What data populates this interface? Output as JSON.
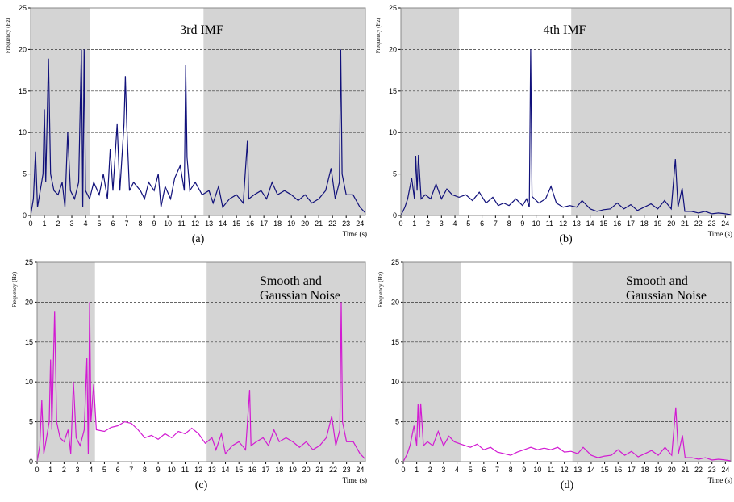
{
  "chart_data": [
    {
      "type": "line",
      "annotation": [
        "3rd IMF"
      ],
      "caption": "(a)",
      "x_label": "Time (s)",
      "y_label": "Frequency (Hz)",
      "xlim": [
        0,
        24.4
      ],
      "ylim": [
        0,
        25
      ],
      "xticks": [
        0,
        1,
        2,
        3,
        4,
        5,
        6,
        7,
        8,
        9,
        10,
        11,
        12,
        13,
        14,
        15,
        16,
        17,
        18,
        19,
        20,
        21,
        22,
        23,
        24
      ],
      "yticks": [
        0,
        5,
        10,
        15,
        20,
        25
      ],
      "grid": true,
      "shaded": [
        [
          0,
          4.3
        ],
        [
          12.6,
          24.4
        ]
      ],
      "x": [
        0,
        0.2,
        0.35,
        0.5,
        0.7,
        0.9,
        1,
        1.1,
        1.3,
        1.45,
        1.7,
        2,
        2.3,
        2.5,
        2.7,
        2.9,
        3.2,
        3.5,
        3.7,
        3.8,
        3.9,
        4,
        4.3,
        4.6,
        5,
        5.3,
        5.6,
        5.8,
        6,
        6.3,
        6.5,
        6.8,
        6.9,
        7,
        7.2,
        7.5,
        8,
        8.3,
        8.6,
        9,
        9.3,
        9.5,
        9.8,
        10.2,
        10.5,
        10.9,
        11.2,
        11.3,
        11.4,
        11.6,
        12,
        12.5,
        13,
        13.3,
        13.7,
        14,
        14.5,
        15,
        15.5,
        15.8,
        15.9,
        16.3,
        16.8,
        17.2,
        17.6,
        18,
        18.5,
        19,
        19.5,
        20,
        20.5,
        21,
        21.5,
        21.9,
        22.2,
        22.5,
        22.6,
        22.7,
        23,
        23.5,
        24,
        24.4
      ],
      "series": [
        {
          "color": "#10107a",
          "values": [
            0,
            2,
            7.7,
            1,
            3,
            5,
            12.8,
            4,
            18.9,
            5,
            3,
            2.5,
            4,
            1,
            10,
            3,
            2,
            4,
            20,
            1,
            20,
            3,
            2,
            4,
            2.5,
            5,
            2,
            8,
            3,
            11,
            3,
            11,
            16.8,
            11,
            3,
            4,
            3,
            2,
            4,
            3,
            5,
            1,
            3.5,
            2,
            4.5,
            6,
            3,
            18.1,
            7,
            3,
            4,
            2.5,
            3,
            1.5,
            3.5,
            1,
            2,
            2.5,
            1.5,
            9,
            2,
            2.5,
            3,
            2,
            4,
            2.5,
            3,
            2.5,
            1.8,
            2.5,
            1.5,
            2,
            3,
            5.7,
            2,
            4,
            20,
            5,
            2.5,
            2.5,
            1,
            0.3
          ]
        }
      ]
    },
    {
      "type": "line",
      "annotation": [
        "4th IMF"
      ],
      "caption": "(b)",
      "x_label": "Time (s)",
      "y_label": "Frequency (Hz)",
      "xlim": [
        0,
        24.4
      ],
      "ylim": [
        0,
        25
      ],
      "xticks": [
        0,
        1,
        2,
        3,
        4,
        5,
        6,
        7,
        8,
        9,
        10,
        11,
        12,
        13,
        14,
        15,
        16,
        17,
        18,
        19,
        20,
        21,
        22,
        23,
        24
      ],
      "yticks": [
        0,
        5,
        10,
        15,
        20,
        25
      ],
      "grid": true,
      "shaded": [
        [
          0,
          4.3
        ],
        [
          12.6,
          24.4
        ]
      ],
      "x": [
        0,
        0.3,
        0.5,
        0.8,
        1,
        1.1,
        1.2,
        1.3,
        1.5,
        1.8,
        2.2,
        2.6,
        3,
        3.4,
        3.8,
        4.3,
        4.8,
        5.3,
        5.8,
        6.3,
        6.8,
        7.2,
        7.6,
        8,
        8.5,
        9,
        9.3,
        9.5,
        9.6,
        9.7,
        10.2,
        10.7,
        11.1,
        11.5,
        12,
        12.5,
        13,
        13.4,
        14,
        14.5,
        15,
        15.5,
        16,
        16.5,
        17,
        17.5,
        18,
        18.5,
        19,
        19.5,
        20,
        20.3,
        20.5,
        20.8,
        21,
        21.5,
        22,
        22.5,
        23,
        23.5,
        24,
        24.4
      ],
      "series": [
        {
          "color": "#10107a",
          "values": [
            0,
            1,
            2,
            4.5,
            2,
            7.2,
            3,
            7.3,
            2,
            2.5,
            2,
            3.8,
            2,
            3.2,
            2.5,
            2.2,
            2.5,
            1.8,
            2.8,
            1.5,
            2.2,
            1.2,
            1.5,
            1.2,
            2,
            1.2,
            2,
            1,
            20,
            2.3,
            1.5,
            2,
            3.5,
            1.5,
            1,
            1.2,
            1,
            1.8,
            0.8,
            0.5,
            0.7,
            0.8,
            1.5,
            0.8,
            1.3,
            0.6,
            1,
            1.4,
            0.8,
            1.8,
            0.8,
            6.8,
            1,
            3.3,
            0.5,
            0.5,
            0.3,
            0.5,
            0.2,
            0.3,
            0.2,
            0.1
          ]
        }
      ]
    },
    {
      "type": "line",
      "annotation": [
        "Smooth and",
        "Gaussian Noise"
      ],
      "caption": "(c)",
      "x_label": "Time (s)",
      "y_label": "Frequency (Hz)",
      "xlim": [
        0,
        24.4
      ],
      "ylim": [
        0,
        25
      ],
      "xticks": [
        0,
        1,
        2,
        3,
        4,
        5,
        6,
        7,
        8,
        9,
        10,
        11,
        12,
        13,
        14,
        15,
        16,
        17,
        18,
        19,
        20,
        21,
        22,
        23,
        24
      ],
      "yticks": [
        0,
        5,
        10,
        15,
        20,
        25
      ],
      "grid": true,
      "shaded": [
        [
          0,
          4.3
        ],
        [
          12.6,
          24.4
        ]
      ],
      "x": [
        0,
        0.2,
        0.35,
        0.5,
        0.7,
        0.9,
        1,
        1.1,
        1.3,
        1.45,
        1.7,
        2,
        2.3,
        2.5,
        2.7,
        2.9,
        3.2,
        3.5,
        3.7,
        3.8,
        3.9,
        4,
        4.2,
        4.4,
        5,
        5.5,
        6,
        6.5,
        7,
        7.5,
        8,
        8.5,
        9,
        9.5,
        10,
        10.5,
        11,
        11.5,
        12,
        12.5,
        13,
        13.3,
        13.7,
        14,
        14.5,
        15,
        15.5,
        15.8,
        15.9,
        16.3,
        16.8,
        17.2,
        17.6,
        18,
        18.5,
        19,
        19.5,
        20,
        20.5,
        21,
        21.5,
        21.9,
        22.2,
        22.5,
        22.6,
        22.7,
        23,
        23.5,
        24,
        24.4
      ],
      "series": [
        {
          "color": "#d21ad2",
          "values": [
            0,
            2,
            7.7,
            1,
            3,
            5,
            12.8,
            4,
            18.9,
            5,
            3,
            2.5,
            4,
            1,
            10,
            3,
            2,
            4,
            13,
            1,
            20,
            5,
            9.7,
            4,
            3.8,
            4.3,
            4.5,
            5,
            4.8,
            4,
            3,
            3.3,
            2.8,
            3.5,
            3,
            3.8,
            3.5,
            4.2,
            3.5,
            2.3,
            3,
            1.5,
            3.5,
            1,
            2,
            2.5,
            1.5,
            9,
            2,
            2.5,
            3,
            2,
            4,
            2.5,
            3,
            2.5,
            1.8,
            2.5,
            1.5,
            2,
            3,
            5.7,
            2,
            4,
            20,
            5,
            2.5,
            2.5,
            1,
            0.3
          ]
        }
      ]
    },
    {
      "type": "line",
      "annotation": [
        "Smooth and",
        "Gaussian Noise"
      ],
      "caption": "(d)",
      "x_label": "Time (s)",
      "y_label": "Frequency (Hz)",
      "xlim": [
        0,
        24.4
      ],
      "ylim": [
        0,
        25
      ],
      "xticks": [
        0,
        1,
        2,
        3,
        4,
        5,
        6,
        7,
        8,
        9,
        10,
        11,
        12,
        13,
        14,
        15,
        16,
        17,
        18,
        19,
        20,
        21,
        22,
        23,
        24
      ],
      "yticks": [
        0,
        5,
        10,
        15,
        20,
        25
      ],
      "grid": true,
      "shaded": [
        [
          0,
          4.3
        ],
        [
          12.6,
          24.4
        ]
      ],
      "x": [
        0,
        0.3,
        0.5,
        0.8,
        1,
        1.1,
        1.2,
        1.3,
        1.5,
        1.8,
        2.2,
        2.6,
        3,
        3.4,
        3.8,
        4.3,
        5,
        5.5,
        6,
        6.5,
        7,
        7.5,
        8,
        8.5,
        9,
        9.5,
        10,
        10.5,
        11,
        11.5,
        12,
        12.5,
        13,
        13.4,
        14,
        14.5,
        15,
        15.5,
        16,
        16.5,
        17,
        17.5,
        18,
        18.5,
        19,
        19.5,
        20,
        20.3,
        20.5,
        20.8,
        21,
        21.5,
        22,
        22.5,
        23,
        23.5,
        24,
        24.4
      ],
      "series": [
        {
          "color": "#d21ad2",
          "values": [
            0,
            1,
            2,
            4.5,
            2,
            7.2,
            3,
            7.3,
            2,
            2.5,
            2,
            3.8,
            2,
            3.2,
            2.5,
            2.2,
            1.8,
            2.2,
            1.5,
            1.8,
            1.2,
            1,
            0.8,
            1.2,
            1.5,
            1.8,
            1.5,
            1.7,
            1.5,
            1.8,
            1.2,
            1.3,
            1,
            1.8,
            0.8,
            0.5,
            0.7,
            0.8,
            1.5,
            0.8,
            1.3,
            0.6,
            1,
            1.4,
            0.8,
            1.8,
            0.8,
            6.8,
            1,
            3.3,
            0.5,
            0.5,
            0.3,
            0.5,
            0.2,
            0.3,
            0.2,
            0.1
          ]
        }
      ]
    }
  ]
}
